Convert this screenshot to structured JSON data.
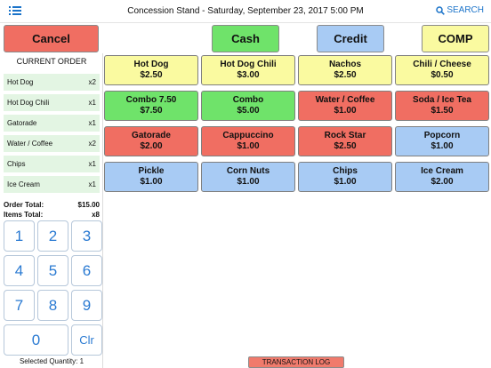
{
  "header": {
    "title": "Concession Stand - Saturday, September 23, 2017 5:00 PM",
    "search_label": "SEARCH",
    "menu_icon": "list-icon",
    "search_icon": "magnifier-icon"
  },
  "actions": {
    "cancel": "Cancel",
    "cash": "Cash",
    "credit": "Credit",
    "comp": "COMP"
  },
  "colors": {
    "yellow": "#fafaa0",
    "green": "#6fe36a",
    "red": "#f06e62",
    "blue": "#a8cbf4"
  },
  "order": {
    "header": "CURRENT ORDER",
    "items": [
      {
        "name": "Hot Dog",
        "qty": "x2"
      },
      {
        "name": "Hot Dog Chili",
        "qty": "x1"
      },
      {
        "name": "Gatorade",
        "qty": "x1"
      },
      {
        "name": "Water / Coffee",
        "qty": "x2"
      },
      {
        "name": "Chips",
        "qty": "x1"
      },
      {
        "name": "Ice Cream",
        "qty": "x1"
      }
    ],
    "total_label": "Order Total:",
    "total_value": "$15.00",
    "items_label": "Items Total:",
    "items_value": "x8"
  },
  "keypad": {
    "keys": [
      "1",
      "2",
      "3",
      "4",
      "5",
      "6",
      "7",
      "8",
      "9",
      "0",
      "Clr"
    ]
  },
  "selected_quantity": "Selected Quantity: 1",
  "products": [
    {
      "name": "Hot Dog",
      "price": "$2.50",
      "color": "yellow"
    },
    {
      "name": "Hot Dog Chili",
      "price": "$3.00",
      "color": "yellow"
    },
    {
      "name": "Nachos",
      "price": "$2.50",
      "color": "yellow"
    },
    {
      "name": "Chili / Cheese",
      "price": "$0.50",
      "color": "yellow"
    },
    {
      "name": "Combo 7.50",
      "price": "$7.50",
      "color": "green"
    },
    {
      "name": "Combo",
      "price": "$5.00",
      "color": "green"
    },
    {
      "name": "Water / Coffee",
      "price": "$1.00",
      "color": "red"
    },
    {
      "name": "Soda / Ice Tea",
      "price": "$1.50",
      "color": "red"
    },
    {
      "name": "Gatorade",
      "price": "$2.00",
      "color": "red"
    },
    {
      "name": "Cappuccino",
      "price": "$1.00",
      "color": "red"
    },
    {
      "name": "Rock Star",
      "price": "$2.50",
      "color": "red"
    },
    {
      "name": "Popcorn",
      "price": "$1.00",
      "color": "blue"
    },
    {
      "name": "Pickle",
      "price": "$1.00",
      "color": "blue"
    },
    {
      "name": "Corn Nuts",
      "price": "$1.00",
      "color": "blue"
    },
    {
      "name": "Chips",
      "price": "$1.00",
      "color": "blue"
    },
    {
      "name": "Ice Cream",
      "price": "$2.00",
      "color": "blue"
    }
  ],
  "transaction_log": "TRANSACTION LOG"
}
